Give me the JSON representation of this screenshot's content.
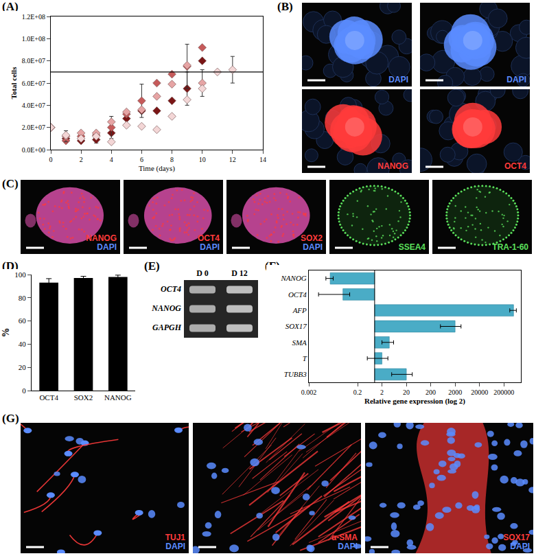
{
  "chart_data": [
    {
      "panel": "(A)",
      "type": "scatter",
      "marker": "diamond",
      "x_label": "Time (days)",
      "y_label": "Total cells",
      "xlim": [
        0,
        14
      ],
      "xticks": [
        0,
        2,
        4,
        6,
        8,
        10,
        12,
        14
      ],
      "ylim": [
        0,
        120000000
      ],
      "yticks": [
        {
          "value": 0,
          "label": "0.0E+00"
        },
        {
          "value": 20000000,
          "label": "2.0E+07"
        },
        {
          "value": 40000000,
          "label": "4.0E+07"
        },
        {
          "value": 60000000,
          "label": "6.0E+07"
        },
        {
          "value": 80000000,
          "label": "8.0E+07"
        },
        {
          "value": 100000000,
          "label": "1.0E+08"
        },
        {
          "value": 120000000,
          "label": "1.2E+08"
        }
      ],
      "hline": 70000000,
      "series": [
        {
          "color": "#7a1616",
          "x": [
            0,
            1,
            2,
            3,
            4,
            5,
            6,
            7,
            8,
            9,
            10
          ],
          "values": [
            20000000,
            10000000,
            8000000,
            9000000,
            15000000,
            28000000,
            35000000,
            35000000,
            44000000,
            55000000,
            80000000
          ],
          "errors": [
            null,
            null,
            null,
            3000000,
            null,
            null,
            null,
            null,
            null,
            15000000,
            null
          ]
        },
        {
          "color": "#c65a5a",
          "x": [
            0,
            1,
            2,
            3,
            4,
            5,
            6,
            7,
            8,
            9,
            10
          ],
          "values": [
            20000000,
            8000000,
            12000000,
            13000000,
            20000000,
            32000000,
            44000000,
            60000000,
            68000000,
            75000000,
            92000000
          ],
          "errors": [
            null,
            null,
            null,
            null,
            10000000,
            null,
            15000000,
            null,
            null,
            20000000,
            null
          ]
        },
        {
          "color": "#e6a4a4",
          "x": [
            0,
            1,
            2,
            3,
            4,
            5,
            6,
            7,
            8,
            9,
            10
          ],
          "values": [
            20000000,
            12000000,
            15000000,
            15000000,
            25000000,
            34000000,
            36000000,
            48000000,
            59000000,
            76000000,
            60000000
          ],
          "errors": [
            null,
            5000000,
            null,
            null,
            null,
            null,
            null,
            null,
            null,
            null,
            12000000
          ]
        },
        {
          "color": "#f3d6d6",
          "x": [
            0,
            1,
            2,
            3,
            4,
            5,
            6,
            7,
            8,
            9,
            10,
            11,
            12
          ],
          "values": [
            20000000,
            13000000,
            10000000,
            12000000,
            7000000,
            22000000,
            21000000,
            18000000,
            30000000,
            45000000,
            55000000,
            70000000,
            72000000
          ],
          "errors": [
            null,
            null,
            null,
            null,
            null,
            null,
            null,
            null,
            null,
            null,
            null,
            null,
            12000000
          ]
        }
      ]
    },
    {
      "panel": "(D)",
      "type": "bar",
      "y_label": "%",
      "categories": [
        "OCT4",
        "SOX2",
        "NANOG"
      ],
      "values": [
        93,
        97,
        98
      ],
      "errors": [
        3.5,
        1.5,
        1.5
      ],
      "color": "#000000",
      "ylim": [
        0,
        100
      ],
      "yticks": [
        0,
        20,
        40,
        60,
        80,
        100
      ]
    },
    {
      "panel": "(F)",
      "type": "bar",
      "orientation": "horizontal",
      "log": "x",
      "x_label": "Relative gene expression (log 2)",
      "categories": [
        "NANOG",
        "OCT4",
        "AFP",
        "SOX17",
        "SMA",
        "T",
        "TUBB3"
      ],
      "values": [
        0.015,
        0.05,
        500000,
        2000,
        4,
        2,
        20
      ],
      "errors": [
        0.005,
        0.045,
        150000,
        1500,
        2,
        1.5,
        15
      ],
      "base": 1,
      "color": "#4aacc6",
      "xlim": [
        0.002,
        1000000
      ],
      "xticks": [
        0.002,
        0.2,
        2,
        20,
        200,
        2000,
        20000,
        200000
      ]
    }
  ],
  "images": [
    {
      "panel": "(B)",
      "tiles": [
        {
          "stains": [
            {
              "text": "DAPI",
              "color": "#5b8cff"
            }
          ]
        },
        {
          "stains": [
            {
              "text": "DAPI",
              "color": "#5b8cff"
            }
          ]
        },
        {
          "stains": [
            {
              "text": "NANOG",
              "color": "#ff3b3b"
            }
          ]
        },
        {
          "stains": [
            {
              "text": "OCT4",
              "color": "#ff3b3b"
            }
          ]
        }
      ]
    },
    {
      "panel": "(C)",
      "tiles": [
        {
          "stains": [
            {
              "text": "NANOG",
              "color": "#ff3b3b"
            },
            {
              "text": "DAPI",
              "color": "#5b8cff"
            }
          ]
        },
        {
          "stains": [
            {
              "text": "OCT4",
              "color": "#ff3b3b"
            },
            {
              "text": "DAPI",
              "color": "#5b8cff"
            }
          ]
        },
        {
          "stains": [
            {
              "text": "SOX2",
              "color": "#ff3b3b"
            },
            {
              "text": "DAPI",
              "color": "#5b8cff"
            }
          ]
        },
        {
          "stains": [
            {
              "text": "SSEA4",
              "color": "#5be05b"
            }
          ]
        },
        {
          "stains": [
            {
              "text": "TRA-1-60",
              "color": "#5be05b"
            }
          ]
        }
      ]
    },
    {
      "panel": "(G)",
      "tiles": [
        {
          "stains": [
            {
              "text": "TUJ1",
              "color": "#ff3b3b"
            },
            {
              "text": "DAPI",
              "color": "#5b8cff"
            }
          ]
        },
        {
          "stains": [
            {
              "text": "α-SMA",
              "color": "#ff3b3b"
            },
            {
              "text": "DAPI",
              "color": "#5b8cff"
            }
          ]
        },
        {
          "stains": [
            {
              "text": "SOX17",
              "color": "#ff3b3b"
            },
            {
              "text": "DAPI",
              "color": "#5b8cff"
            }
          ]
        }
      ]
    }
  ],
  "gel": {
    "panel": "(E)",
    "lanes": [
      "D 0",
      "D 12"
    ],
    "genes": [
      "OCT4",
      "NANOG",
      "GAPGH"
    ]
  }
}
